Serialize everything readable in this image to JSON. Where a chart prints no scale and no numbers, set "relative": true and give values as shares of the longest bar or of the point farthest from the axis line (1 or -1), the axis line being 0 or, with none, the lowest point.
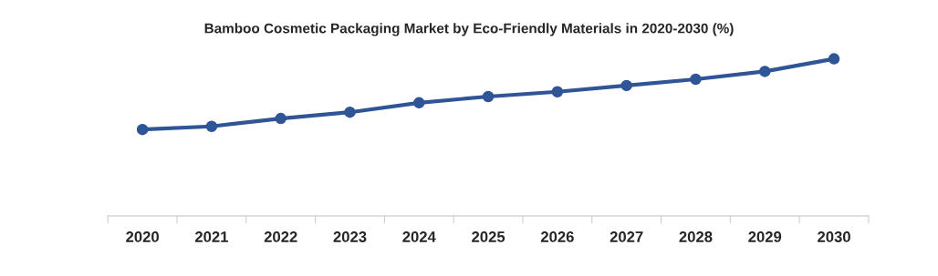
{
  "chart_data": {
    "type": "line",
    "title": "Bamboo Cosmetic Packaging Market by Eco-Friendly Materials in 2020-2030 (%)",
    "categories": [
      "2020",
      "2021",
      "2022",
      "2023",
      "2024",
      "2025",
      "2026",
      "2027",
      "2028",
      "2029",
      "2030"
    ],
    "relative": true,
    "marker": "circle",
    "line_style": "solid",
    "grid": false,
    "legend": false,
    "series": [
      {
        "color": "#2f5597",
        "values": [
          0.55,
          0.57,
          0.62,
          0.66,
          0.72,
          0.76,
          0.79,
          0.83,
          0.87,
          0.92,
          1.0
        ]
      }
    ]
  }
}
